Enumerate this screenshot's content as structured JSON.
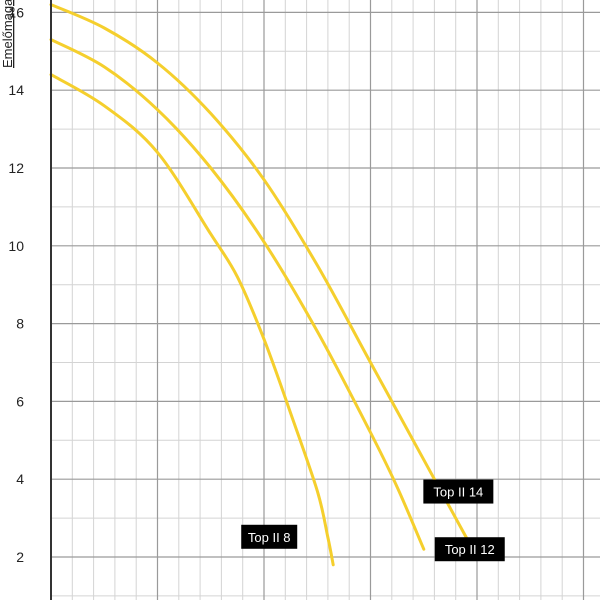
{
  "chart_data": {
    "type": "line",
    "ylabel": "Emelőmagasság",
    "xlabel": "",
    "ylim": [
      1,
      16.3
    ],
    "yticks": [
      2,
      4,
      6,
      8,
      10,
      12,
      14,
      16
    ],
    "ytick_labels": [
      "2",
      "4",
      "6",
      "8",
      "10",
      "12",
      "14",
      "16"
    ],
    "xlim": [
      0,
      5.3
    ],
    "x_major_step": 1,
    "x_minor_step": 0.2,
    "y_minor_step": 1,
    "grid": true,
    "series": [
      {
        "name": "Top II 8",
        "color": "#f5cf2d",
        "points": [
          [
            0,
            14.4
          ],
          [
            0.5,
            13.6
          ],
          [
            1,
            12.4
          ],
          [
            1.5,
            10.3
          ],
          [
            1.75,
            9.2
          ],
          [
            2,
            7.6
          ],
          [
            2.25,
            5.7
          ],
          [
            2.5,
            3.7
          ],
          [
            2.6,
            2.5
          ],
          [
            2.65,
            1.8
          ]
        ]
      },
      {
        "name": "Top II 12",
        "color": "#f5cf2d",
        "points": [
          [
            0,
            15.3
          ],
          [
            0.5,
            14.6
          ],
          [
            1,
            13.5
          ],
          [
            1.5,
            12.0
          ],
          [
            2,
            10.1
          ],
          [
            2.5,
            7.8
          ],
          [
            3,
            5.2
          ],
          [
            3.25,
            3.8
          ],
          [
            3.5,
            2.2
          ]
        ]
      },
      {
        "name": "Top II 14",
        "color": "#f5cf2d",
        "points": [
          [
            0,
            16.2
          ],
          [
            0.5,
            15.6
          ],
          [
            1,
            14.7
          ],
          [
            1.5,
            13.4
          ],
          [
            2,
            11.7
          ],
          [
            2.5,
            9.5
          ],
          [
            3,
            7.0
          ],
          [
            3.5,
            4.5
          ],
          [
            3.9,
            2.5
          ]
        ]
      }
    ],
    "annotations": [
      "Top II 8",
      "Top II 12",
      "Top II 14"
    ]
  }
}
